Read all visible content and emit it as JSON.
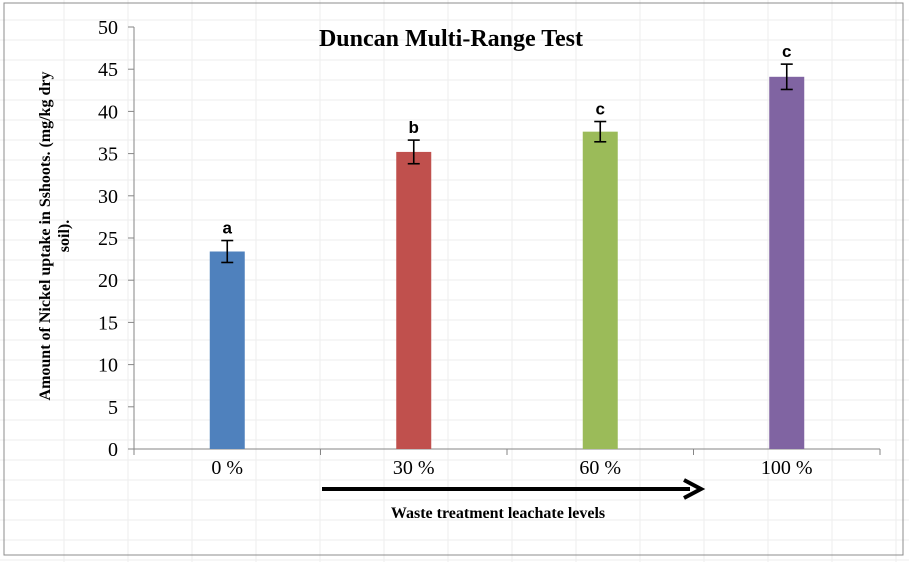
{
  "chart_data": {
    "type": "bar",
    "title": "Duncan Multi-Range Test",
    "ylabel_lines": [
      "Amount of Nickel uptake in Sshoots. (mg/kg dry",
      "soil)."
    ],
    "xlabel": "Waste treatment leachate levels",
    "categories": [
      "0 %",
      "30 %",
      "60 %",
      "100 %"
    ],
    "values": [
      23.4,
      35.2,
      37.6,
      44.1
    ],
    "errors": [
      1.3,
      1.4,
      1.2,
      1.5
    ],
    "significance_letters": [
      "a",
      "b",
      "c",
      "c"
    ],
    "colors": [
      "#4f81bd",
      "#c0504d",
      "#9bbb59",
      "#8064a2"
    ],
    "ylim": [
      0,
      50
    ],
    "yticks": [
      0,
      5,
      10,
      15,
      20,
      25,
      30,
      35,
      40,
      45,
      50
    ],
    "grid": false,
    "legend": "none"
  }
}
